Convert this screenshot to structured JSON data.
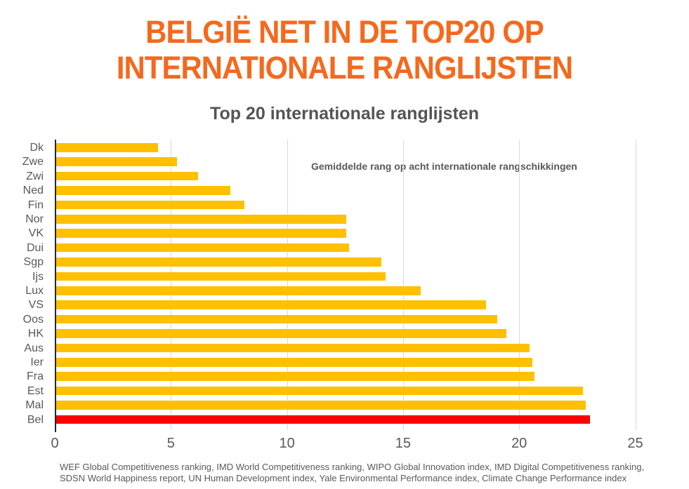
{
  "header": {
    "title_line1": "BELGIË NET IN DE TOP20 OP",
    "title_line2": "INTERNATIONALE RANGLIJSTEN",
    "title_color": "#F4691E"
  },
  "chart_data": {
    "type": "bar",
    "orientation": "horizontal",
    "title": "Top 20 internationale ranglijsten",
    "annotation": "Gemiddelde rang op acht internationale rangschikkingen",
    "categories": [
      "Dk",
      "Zwe",
      "Zwi",
      "Ned",
      "Fin",
      "Nor",
      "VK",
      "Dui",
      "Sgp",
      "Ijs",
      "Lux",
      "VS",
      "Oos",
      "HK",
      "Aus",
      "Ier",
      "Fra",
      "Est",
      "Mal",
      "Bel"
    ],
    "values": [
      4.4,
      5.2,
      6.1,
      7.5,
      8.1,
      12.5,
      12.5,
      12.6,
      14.0,
      14.2,
      15.7,
      18.5,
      19.0,
      19.4,
      20.4,
      20.5,
      20.6,
      22.7,
      22.8,
      23.0
    ],
    "highlight_category": "Bel",
    "bar_color": "#FFC000",
    "highlight_color": "#FF0000",
    "gridline_color": "#D9D9D9",
    "axis_color": "#262626",
    "x_ticks": [
      0,
      5,
      10,
      15,
      20,
      25
    ],
    "xlim": [
      0,
      26.5
    ],
    "grid": true,
    "legend": "none",
    "footnote_line1": "WEF Global Competitiveness ranking, IMD World Competitiveness ranking, WIPO Global Innovation index, IMD Digital Competitiveness ranking,",
    "footnote_line2": "SDSN World Happiness report, UN Human Development index, Yale Environmental Performance index, Climate Change Performance index"
  }
}
